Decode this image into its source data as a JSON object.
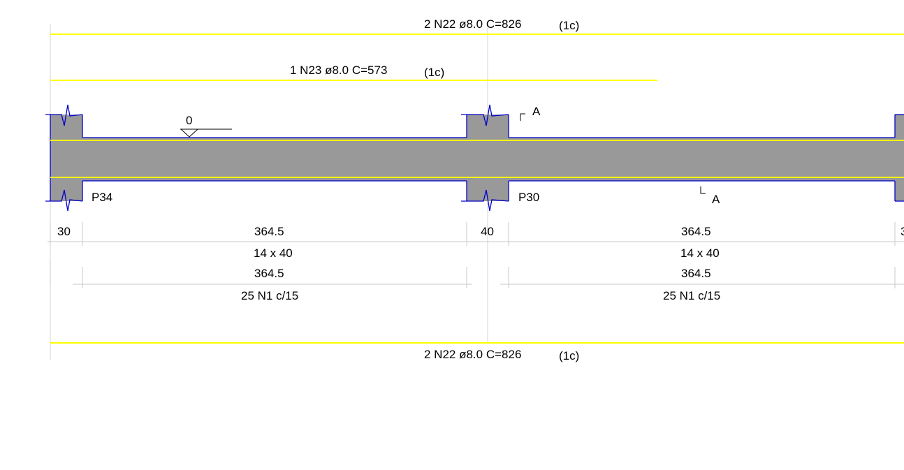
{
  "rebars": {
    "top_long": {
      "label": "2 N22 ø8.0 C=826",
      "layer": "(1c)"
    },
    "top_short": {
      "label": "1 N23 ø8.0 C=573",
      "layer": "(1c)"
    },
    "bottom_long": {
      "label": "2 N22 ø8.0 C=826",
      "layer": "(1c)"
    }
  },
  "level_marker": {
    "value": "0"
  },
  "section_cut": {
    "label_top": "A",
    "label_bottom": "A"
  },
  "pillars": {
    "left": "P34",
    "middle": "P30"
  },
  "dimensions": {
    "row1": [
      "30",
      "364.5",
      "40",
      "364.5",
      "3"
    ],
    "stirrups_count_1": "14 x 40",
    "stirrups_count_2": "14 x 40",
    "row2": [
      "364.5",
      "364.5"
    ],
    "stirrups_spec_1": "25 N1 c/15",
    "stirrups_spec_2": "25 N1 c/15"
  },
  "colors": {
    "rebar": "#ffff00",
    "concrete": "#999999",
    "outline": "#0000cc",
    "dimension_line": "#c8c8c8"
  }
}
